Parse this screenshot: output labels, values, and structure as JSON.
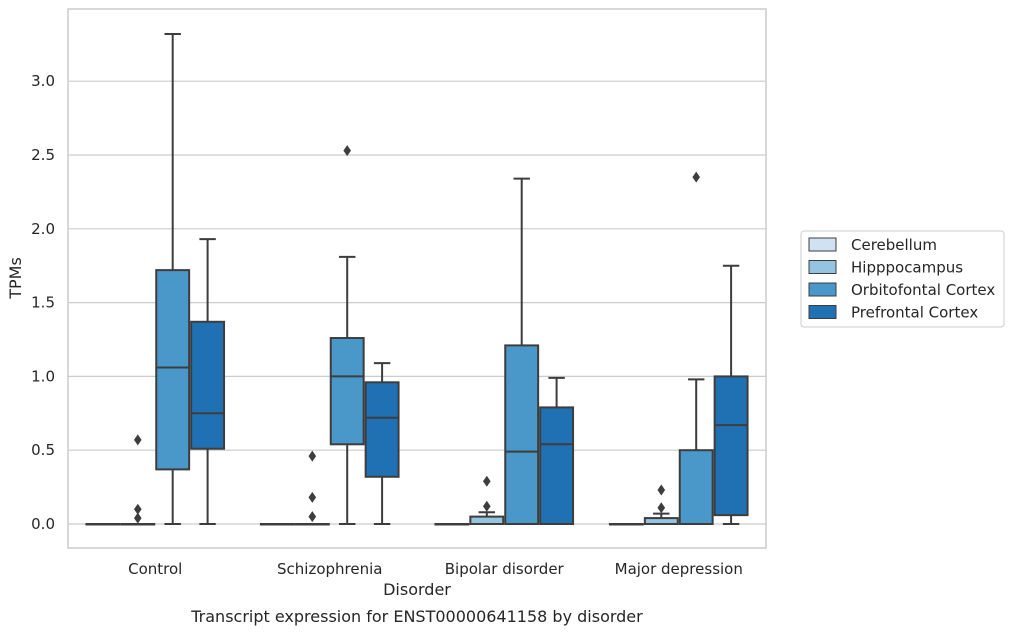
{
  "chart_data": {
    "type": "box",
    "title": "Transcript expression for ENST00000641158 by disorder",
    "xlabel": "Disorder",
    "ylabel": "TPMs",
    "categories": [
      "Control",
      "Schizophrenia",
      "Bipolar disorder",
      "Major depression"
    ],
    "ylim": [
      -0.16,
      3.52
    ],
    "yticks": [
      "0.0",
      "0.5",
      "1.0",
      "1.5",
      "2.0",
      "2.5",
      "3.0"
    ],
    "grid": true,
    "legend_position": "right",
    "series": [
      {
        "name": "Cerebellum",
        "color": "#d0e1f2",
        "boxes": [
          {
            "min": 0,
            "q1": 0,
            "median": 0,
            "q3": 0,
            "max": 0,
            "outliers": []
          },
          {
            "min": 0,
            "q1": 0,
            "median": 0,
            "q3": 0,
            "max": 0,
            "outliers": []
          },
          {
            "min": 0,
            "q1": 0,
            "median": 0,
            "q3": 0,
            "max": 0,
            "outliers": []
          },
          {
            "min": 0,
            "q1": 0,
            "median": 0,
            "q3": 0,
            "max": 0,
            "outliers": []
          }
        ]
      },
      {
        "name": "Hipppocampus",
        "color": "#94c4df",
        "boxes": [
          {
            "min": 0,
            "q1": 0,
            "median": 0,
            "q3": 0,
            "max": 0,
            "outliers": [
              0.57,
              0.1,
              0.04
            ]
          },
          {
            "min": 0,
            "q1": 0,
            "median": 0,
            "q3": 0,
            "max": 0,
            "outliers": [
              0.46,
              0.18,
              0.05
            ]
          },
          {
            "min": 0,
            "q1": 0,
            "median": 0,
            "q3": 0.05,
            "max": 0.08,
            "outliers": [
              0.29,
              0.12
            ]
          },
          {
            "min": 0,
            "q1": 0,
            "median": 0,
            "q3": 0.04,
            "max": 0.07,
            "outliers": [
              0.23,
              0.11
            ]
          }
        ]
      },
      {
        "name": "Orbitofontal Cortex",
        "color": "#4a98c9",
        "boxes": [
          {
            "min": 0,
            "q1": 0.37,
            "median": 1.06,
            "q3": 1.72,
            "max": 3.32,
            "outliers": []
          },
          {
            "min": 0,
            "q1": 0.54,
            "median": 1.0,
            "q3": 1.26,
            "max": 1.81,
            "outliers": [
              2.53
            ]
          },
          {
            "min": 0,
            "q1": 0,
            "median": 0.49,
            "q3": 1.21,
            "max": 2.34,
            "outliers": []
          },
          {
            "min": 0,
            "q1": 0,
            "median": 0,
            "q3": 0.5,
            "max": 0.98,
            "outliers": [
              2.35
            ]
          }
        ]
      },
      {
        "name": "Prefrontal Cortex",
        "color": "#2070b4",
        "boxes": [
          {
            "min": 0,
            "q1": 0.51,
            "median": 0.75,
            "q3": 1.37,
            "max": 1.93,
            "outliers": []
          },
          {
            "min": 0,
            "q1": 0.32,
            "median": 0.72,
            "q3": 0.96,
            "max": 1.09,
            "outliers": []
          },
          {
            "min": 0,
            "q1": 0,
            "median": 0.54,
            "q3": 0.79,
            "max": 0.99,
            "outliers": []
          },
          {
            "min": 0,
            "q1": 0.06,
            "median": 0.67,
            "q3": 1.0,
            "max": 1.75,
            "outliers": []
          }
        ]
      }
    ]
  }
}
